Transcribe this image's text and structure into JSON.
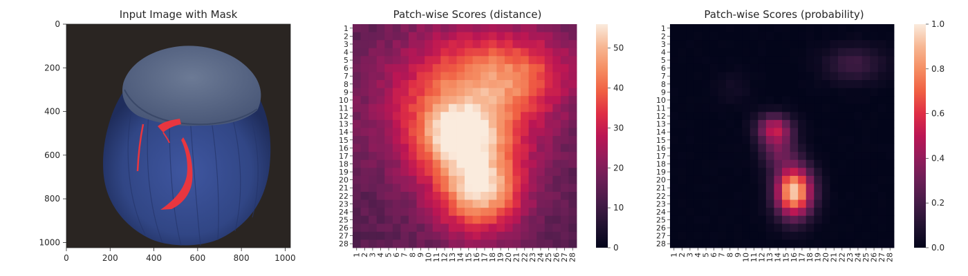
{
  "chart_data": [
    {
      "type": "image",
      "title": "Input Image with Mask",
      "x_ticks": [
        0,
        200,
        400,
        600,
        800,
        1000
      ],
      "y_ticks": [
        0,
        200,
        400,
        600,
        800,
        1000
      ],
      "xlim": [
        0,
        1024
      ],
      "ylim": [
        1024,
        0
      ],
      "subject": "hazelnut with red crack mask overlay",
      "colors": {
        "background": "#2a2522",
        "nut": "#34477e",
        "cap": "#5f6f8e",
        "mask": "#e8363f"
      }
    },
    {
      "type": "heatmap",
      "title": "Patch-wise Scores (distance)",
      "grid_size": 28,
      "x_ticks": [
        "1",
        "2",
        "3",
        "4",
        "5",
        "6",
        "7",
        "8",
        "9",
        "10",
        "11",
        "12",
        "13",
        "14",
        "15",
        "16",
        "17",
        "18",
        "19",
        "20",
        "21",
        "22",
        "23",
        "24",
        "25",
        "26",
        "27",
        "28"
      ],
      "y_ticks": [
        "1",
        "2",
        "3",
        "4",
        "5",
        "6",
        "7",
        "8",
        "9",
        "10",
        "11",
        "12",
        "13",
        "14",
        "15",
        "16",
        "17",
        "18",
        "19",
        "20",
        "21",
        "22",
        "23",
        "24",
        "25",
        "26",
        "27",
        "28"
      ],
      "colorbar_range": [
        0,
        56
      ],
      "colorbar_ticks": [
        0,
        10,
        20,
        30,
        40,
        50
      ],
      "colormap": "rocket",
      "value_model": {
        "base": 14,
        "blobs": [
          {
            "row": 10.5,
            "col": 14.0,
            "sr": 6.5,
            "sc": 7.0,
            "amp": 26
          },
          {
            "row": 6.5,
            "col": 22.0,
            "sr": 3.5,
            "sc": 5.0,
            "amp": 16
          },
          {
            "row": 14.5,
            "col": 13.5,
            "sr": 2.5,
            "sc": 3.0,
            "amp": 18
          },
          {
            "row": 21.5,
            "col": 16.5,
            "sr": 3.5,
            "sc": 3.5,
            "amp": 26
          },
          {
            "row": 18.0,
            "col": 15.5,
            "sr": 6.5,
            "sc": 4.5,
            "amp": 12
          }
        ]
      }
    },
    {
      "type": "heatmap",
      "title": "Patch-wise Scores (probability)",
      "grid_size": 28,
      "x_ticks": [
        "1",
        "2",
        "3",
        "4",
        "5",
        "6",
        "7",
        "8",
        "9",
        "10",
        "11",
        "12",
        "13",
        "14",
        "15",
        "16",
        "17",
        "18",
        "19",
        "20",
        "21",
        "22",
        "23",
        "24",
        "25",
        "26",
        "27",
        "28"
      ],
      "y_ticks": [
        "1",
        "2",
        "3",
        "4",
        "5",
        "6",
        "7",
        "8",
        "9",
        "10",
        "11",
        "12",
        "13",
        "14",
        "15",
        "16",
        "17",
        "18",
        "19",
        "20",
        "21",
        "22",
        "23",
        "24",
        "25",
        "26",
        "27",
        "28"
      ],
      "colorbar_range": [
        0,
        1
      ],
      "colorbar_ticks": [
        "0.0",
        "0.2",
        "0.4",
        "0.6",
        "0.8",
        "1.0"
      ],
      "colormap": "rocket",
      "value_model": {
        "base": 0.0,
        "blobs": [
          {
            "row": 13.5,
            "col": 13.5,
            "sr": 1.2,
            "sc": 1.5,
            "amp": 0.42
          },
          {
            "row": 16.0,
            "col": 14.0,
            "sr": 1.8,
            "sc": 1.5,
            "amp": 0.3
          },
          {
            "row": 21.5,
            "col": 16.0,
            "sr": 2.2,
            "sc": 1.6,
            "amp": 0.95
          },
          {
            "row": 5.5,
            "col": 23.5,
            "sr": 1.6,
            "sc": 2.6,
            "amp": 0.18
          },
          {
            "row": 8.5,
            "col": 8.5,
            "sr": 1.5,
            "sc": 1.5,
            "amp": 0.05
          }
        ]
      }
    }
  ]
}
